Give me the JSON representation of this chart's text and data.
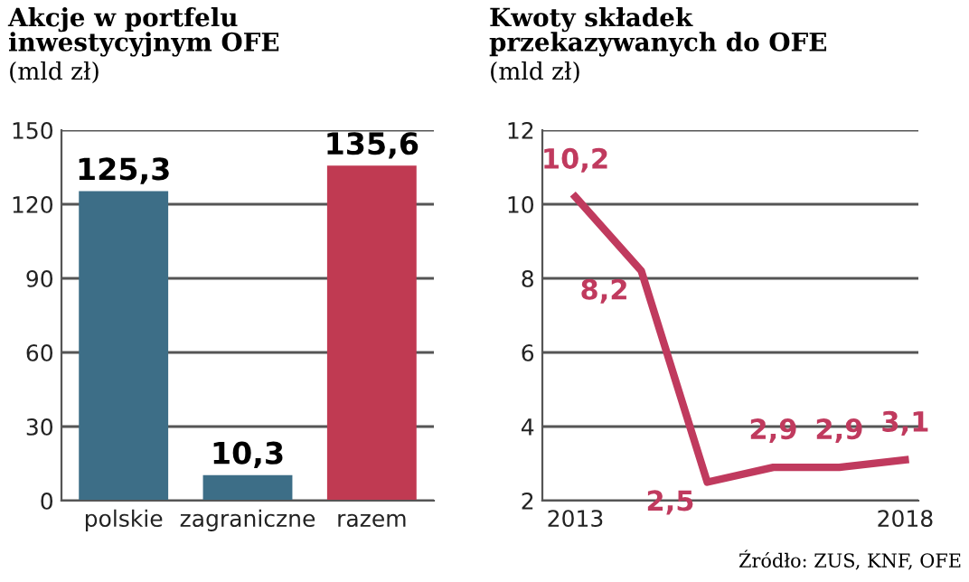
{
  "chart_data": [
    {
      "type": "bar",
      "title": "Akcje w portfelu\ninwestycyjnym OFE",
      "subtitle": "(mld zł)",
      "categories": [
        "polskie",
        "zagraniczne",
        "razem"
      ],
      "values": [
        125.3,
        10.3,
        135.6
      ],
      "colors": [
        "#3d6e87",
        "#3d6e87",
        "#c03a52"
      ],
      "ylim": [
        0,
        150
      ],
      "yticks": [
        0,
        30,
        60,
        90,
        120,
        150
      ],
      "grid": "y",
      "value_labels": [
        "125,3",
        "10,3",
        "135,6"
      ]
    },
    {
      "type": "line",
      "title": "Kwoty składek\nprzekazywanych do OFE",
      "subtitle": "(mld zł)",
      "x": [
        2013,
        2014,
        2015,
        2016,
        2017,
        2018
      ],
      "series": [
        {
          "color": "#c03a5e",
          "values": [
            10.2,
            8.2,
            2.5,
            2.9,
            2.9,
            3.1
          ],
          "value_labels": [
            "10,2",
            "8,2",
            "2,5",
            "2,9",
            "2,9",
            "3,1"
          ]
        }
      ],
      "xlim": [
        2012.5,
        2018.2
      ],
      "xticks": [
        2013,
        2018
      ],
      "ylim": [
        2,
        12
      ],
      "yticks": [
        2,
        4,
        6,
        8,
        10,
        12
      ],
      "grid": "y",
      "annotations": [
        "Źródło: ZUS, KNF, OFE"
      ]
    }
  ]
}
